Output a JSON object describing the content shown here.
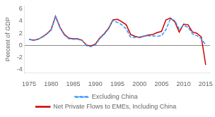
{
  "chart_data": {
    "type": "line",
    "ylabel": "Percent of GDP",
    "x": [
      1975,
      1976,
      1977,
      1978,
      1979,
      1980,
      1981,
      1982,
      1983,
      1984,
      1985,
      1986,
      1987,
      1988,
      1989,
      1990,
      1991,
      1992,
      1993,
      1994,
      1995,
      1996,
      1997,
      1998,
      1999,
      2000,
      2001,
      2002,
      2003,
      2004,
      2005,
      2006,
      2007,
      2008,
      2009,
      2010,
      2011,
      2012,
      2013,
      2014,
      2015
    ],
    "series": [
      {
        "name": "Excluding China",
        "color": "#3399ff",
        "line_style": "dashed",
        "values": [
          1.0,
          0.8,
          1.0,
          1.35,
          1.85,
          2.5,
          4.75,
          2.9,
          1.7,
          1.1,
          1.0,
          1.0,
          0.8,
          -0.05,
          -0.2,
          0.05,
          1.1,
          1.8,
          2.7,
          4.1,
          3.8,
          3.4,
          2.7,
          1.35,
          1.3,
          1.4,
          1.55,
          1.6,
          1.55,
          1.5,
          1.6,
          2.6,
          4.35,
          4.1,
          2.7,
          3.3,
          3.0,
          1.9,
          1.6,
          1.1,
          0.1
        ]
      },
      {
        "name": "Net Private Flows to EMEs, Including China",
        "color": "#cc0000",
        "line_style": "solid",
        "values": [
          1.0,
          0.85,
          1.0,
          1.4,
          1.9,
          2.6,
          4.8,
          3.0,
          1.8,
          1.2,
          1.1,
          1.1,
          0.85,
          0.05,
          -0.1,
          0.2,
          1.2,
          1.9,
          2.8,
          4.2,
          4.3,
          3.9,
          3.4,
          1.8,
          1.5,
          1.3,
          1.5,
          1.7,
          1.8,
          2.1,
          2.3,
          4.2,
          4.5,
          3.9,
          2.2,
          3.5,
          3.4,
          2.2,
          2.0,
          1.4,
          -3.2
        ]
      }
    ],
    "xlim": [
      1974,
      2016
    ],
    "xticks": [
      1975,
      1980,
      1985,
      1990,
      1995,
      2000,
      2005,
      2010,
      2015
    ],
    "ylim": [
      -4.5,
      6.5
    ],
    "yticks": [
      -4,
      -2,
      0,
      2,
      4,
      6
    ],
    "grid": false,
    "legend": "bottom"
  }
}
